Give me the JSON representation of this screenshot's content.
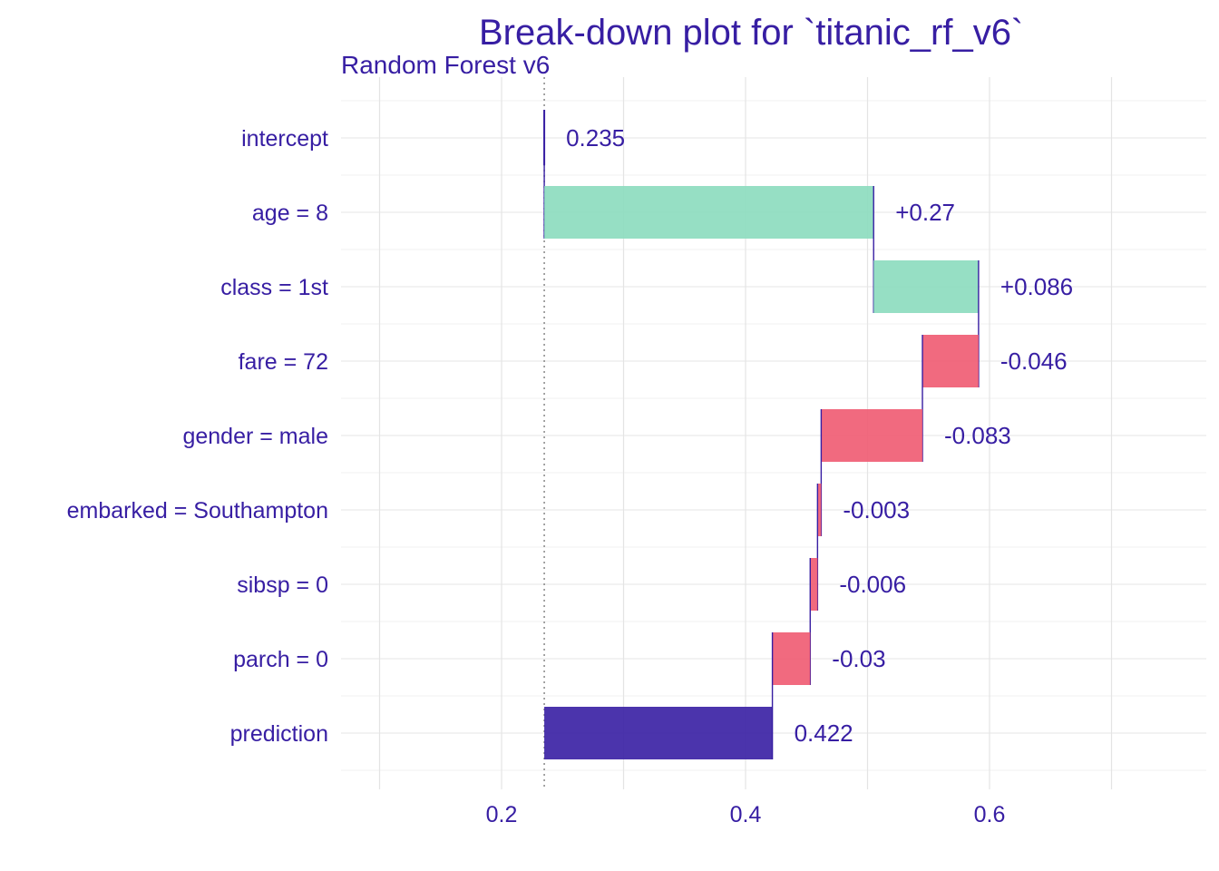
{
  "chart_data": {
    "type": "bar",
    "subtype": "waterfall",
    "title": "Break-down plot for `titanic_rf_v6`",
    "subtitle": "Random Forest v6",
    "xlabel": "",
    "ylabel": "",
    "xlim": [
      0.1,
      0.775
    ],
    "x_ticks": [
      "0.2",
      "0.4",
      "0.6"
    ],
    "x_tick_values": [
      0.2,
      0.4,
      0.6
    ],
    "grid": true,
    "baseline": 0.235,
    "colors": {
      "text": "#371ea3",
      "positive": "#8bdcbe",
      "negative": "#f05a71",
      "prediction": "#371ea3",
      "grid": "#e6e6e6"
    },
    "rows": [
      {
        "label": "intercept",
        "start": 0.235,
        "end": 0.235,
        "value_label": "0.235",
        "kind": "intercept"
      },
      {
        "label": "age = 8",
        "start": 0.235,
        "end": 0.505,
        "value_label": "+0.27",
        "kind": "positive"
      },
      {
        "label": "class = 1st",
        "start": 0.505,
        "end": 0.591,
        "value_label": "+0.086",
        "kind": "positive"
      },
      {
        "label": "fare = 72",
        "start": 0.591,
        "end": 0.545,
        "value_label": "-0.046",
        "kind": "negative"
      },
      {
        "label": "gender = male",
        "start": 0.545,
        "end": 0.462,
        "value_label": "-0.083",
        "kind": "negative"
      },
      {
        "label": "embarked = Southampton",
        "start": 0.462,
        "end": 0.459,
        "value_label": "-0.003",
        "kind": "negative"
      },
      {
        "label": "sibsp = 0",
        "start": 0.459,
        "end": 0.453,
        "value_label": "-0.006",
        "kind": "negative"
      },
      {
        "label": "parch = 0",
        "start": 0.453,
        "end": 0.422,
        "value_label": "-0.03",
        "kind": "negative"
      },
      {
        "label": "prediction",
        "start": 0.235,
        "end": 0.422,
        "value_label": "0.422",
        "kind": "prediction"
      }
    ]
  }
}
